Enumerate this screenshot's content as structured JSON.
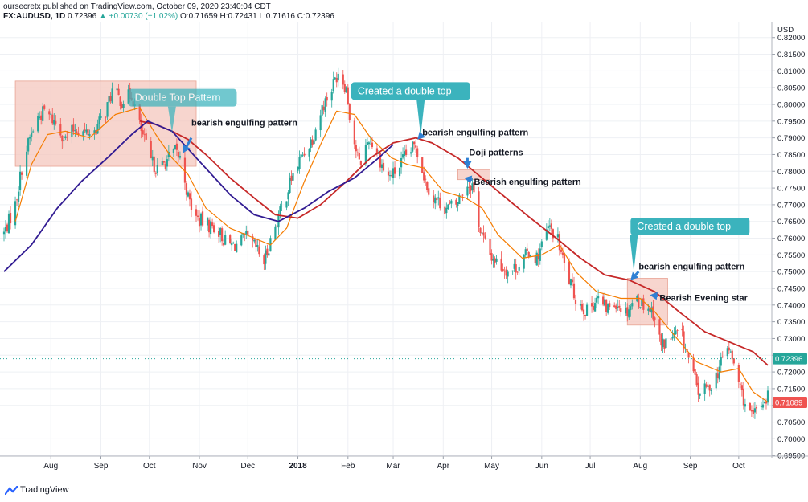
{
  "header": {
    "line1": "oursecretx published on TradingView.com, October 09, 2020 23:40:04 CDT",
    "symbol": "FX:AUDUSD, 1D",
    "last": "0.72396",
    "change": "▲ +0.00730 (+1.02%)",
    "ohlc": "O:0.71659 H:0.72431 L:0.71616 C:0.72396"
  },
  "footer": {
    "brand": "TradingView"
  },
  "colors": {
    "up": "#26a69a",
    "down": "#ef5350",
    "ma_fast": "#f57c00",
    "ma_mid": "#c62828",
    "ma_slow": "#311b92",
    "zone": "#f4c7bd",
    "callout": "#3bb3bd",
    "arrow": "#2f80d4",
    "last_label": "#26a69a",
    "ma_label": "#ef5350"
  },
  "chart_data": {
    "type": "candlestick",
    "price_unit": "USD",
    "ylim": [
      0.6948,
      0.8245
    ],
    "y_ticks": [
      "0.82000",
      "0.81500",
      "0.81000",
      "0.80500",
      "0.80000",
      "0.79500",
      "0.79000",
      "0.78500",
      "0.78000",
      "0.77500",
      "0.77000",
      "0.76500",
      "0.76000",
      "0.75500",
      "0.75000",
      "0.74500",
      "0.74000",
      "0.73500",
      "0.73000",
      "0.72500",
      "0.72000",
      "0.71500",
      "0.71000",
      "0.70500",
      "0.70000",
      "0.69500"
    ],
    "x_ticks": [
      {
        "label": "Aug",
        "date": "2017-08-01"
      },
      {
        "label": "Sep",
        "date": "2017-09-01"
      },
      {
        "label": "Oct",
        "date": "2017-10-01"
      },
      {
        "label": "Nov",
        "date": "2017-11-01"
      },
      {
        "label": "Dec",
        "date": "2017-12-01"
      },
      {
        "label": "2018",
        "date": "2018-01-01"
      },
      {
        "label": "Feb",
        "date": "2018-02-01"
      },
      {
        "label": "Mar",
        "date": "2018-03-01"
      },
      {
        "label": "Apr",
        "date": "2018-04-01"
      },
      {
        "label": "May",
        "date": "2018-05-01"
      },
      {
        "label": "Jun",
        "date": "2018-06-01"
      },
      {
        "label": "Jul",
        "date": "2018-07-01"
      },
      {
        "label": "Aug",
        "date": "2018-08-01"
      },
      {
        "label": "Sep",
        "date": "2018-09-01"
      },
      {
        "label": "Oct",
        "date": "2018-10-01"
      }
    ],
    "x_range": [
      "2017-07-03",
      "2018-10-19"
    ],
    "close_path": [
      [
        "2017-07-03",
        0.7615
      ],
      [
        "2017-07-10",
        0.77
      ],
      [
        "2017-07-14",
        0.781
      ],
      [
        "2017-07-19",
        0.79
      ],
      [
        "2017-07-24",
        0.796
      ],
      [
        "2017-07-28",
        0.798
      ],
      [
        "2017-08-04",
        0.7945
      ],
      [
        "2017-08-10",
        0.7895
      ],
      [
        "2017-08-16",
        0.793
      ],
      [
        "2017-08-22",
        0.7915
      ],
      [
        "2017-08-28",
        0.792
      ],
      [
        "2017-09-04",
        0.798
      ],
      [
        "2017-09-08",
        0.804
      ],
      [
        "2017-09-14",
        0.801
      ],
      [
        "2017-09-20",
        0.803
      ],
      [
        "2017-09-26",
        0.792
      ],
      [
        "2017-10-02",
        0.783
      ],
      [
        "2017-10-07",
        0.78
      ],
      [
        "2017-10-11",
        0.783
      ],
      [
        "2017-10-17",
        0.786
      ],
      [
        "2017-10-21",
        0.783
      ],
      [
        "2017-10-25",
        0.772
      ],
      [
        "2017-10-30",
        0.766
      ],
      [
        "2017-11-06",
        0.764
      ],
      [
        "2017-11-12",
        0.763
      ],
      [
        "2017-11-18",
        0.758
      ],
      [
        "2017-11-24",
        0.758
      ],
      [
        "2017-11-30",
        0.76
      ],
      [
        "2017-12-06",
        0.757
      ],
      [
        "2017-12-11",
        0.753
      ],
      [
        "2017-12-18",
        0.764
      ],
      [
        "2017-12-23",
        0.77
      ],
      [
        "2017-12-28",
        0.778
      ],
      [
        "2018-01-04",
        0.785
      ],
      [
        "2018-01-10",
        0.79
      ],
      [
        "2018-01-16",
        0.799
      ],
      [
        "2018-01-22",
        0.805
      ],
      [
        "2018-01-26",
        0.81
      ],
      [
        "2018-01-31",
        0.805
      ],
      [
        "2018-02-03",
        0.793
      ],
      [
        "2018-02-08",
        0.782
      ],
      [
        "2018-02-14",
        0.79
      ],
      [
        "2018-02-19",
        0.786
      ],
      [
        "2018-02-25",
        0.778
      ],
      [
        "2018-03-03",
        0.78
      ],
      [
        "2018-03-08",
        0.784
      ],
      [
        "2018-03-15",
        0.788
      ],
      [
        "2018-03-21",
        0.777
      ],
      [
        "2018-03-26",
        0.772
      ],
      [
        "2018-04-03",
        0.769
      ],
      [
        "2018-04-09",
        0.77
      ],
      [
        "2018-04-15",
        0.776
      ],
      [
        "2018-04-19",
        0.776
      ],
      [
        "2018-04-24",
        0.762
      ],
      [
        "2018-04-30",
        0.755
      ],
      [
        "2018-05-06",
        0.752
      ],
      [
        "2018-05-12",
        0.75
      ],
      [
        "2018-05-18",
        0.752
      ],
      [
        "2018-05-24",
        0.756
      ],
      [
        "2018-05-29",
        0.754
      ],
      [
        "2018-06-05",
        0.763
      ],
      [
        "2018-06-10",
        0.761
      ],
      [
        "2018-06-16",
        0.75
      ],
      [
        "2018-06-22",
        0.742
      ],
      [
        "2018-06-29",
        0.738
      ],
      [
        "2018-07-05",
        0.742
      ],
      [
        "2018-07-11",
        0.739
      ],
      [
        "2018-07-17",
        0.741
      ],
      [
        "2018-07-23",
        0.738
      ],
      [
        "2018-07-29",
        0.742
      ],
      [
        "2018-08-04",
        0.74
      ],
      [
        "2018-08-09",
        0.738
      ],
      [
        "2018-08-14",
        0.728
      ],
      [
        "2018-08-20",
        0.73
      ],
      [
        "2018-08-26",
        0.732
      ],
      [
        "2018-09-01",
        0.722
      ],
      [
        "2018-09-06",
        0.714
      ],
      [
        "2018-09-12",
        0.715
      ],
      [
        "2018-09-18",
        0.72
      ],
      [
        "2018-09-24",
        0.728
      ],
      [
        "2018-09-28",
        0.722
      ],
      [
        "2018-10-04",
        0.712
      ],
      [
        "2018-10-09",
        0.706
      ],
      [
        "2018-10-14",
        0.71
      ],
      [
        "2018-10-19",
        0.713
      ]
    ],
    "moving_averages": [
      {
        "color_key": "ma_fast",
        "points": [
          [
            "2017-07-10",
            0.765
          ],
          [
            "2017-07-20",
            0.782
          ],
          [
            "2017-07-30",
            0.791
          ],
          [
            "2017-08-10",
            0.792
          ],
          [
            "2017-08-25",
            0.79
          ],
          [
            "2017-09-10",
            0.797
          ],
          [
            "2017-09-25",
            0.799
          ],
          [
            "2017-10-05",
            0.791
          ],
          [
            "2017-10-15",
            0.784
          ],
          [
            "2017-10-25",
            0.779
          ],
          [
            "2017-11-05",
            0.769
          ],
          [
            "2017-11-20",
            0.763
          ],
          [
            "2017-12-05",
            0.76
          ],
          [
            "2017-12-15",
            0.758
          ],
          [
            "2017-12-25",
            0.763
          ],
          [
            "2018-01-05",
            0.777
          ],
          [
            "2018-01-15",
            0.788
          ],
          [
            "2018-01-25",
            0.798
          ],
          [
            "2018-02-05",
            0.797
          ],
          [
            "2018-02-15",
            0.79
          ],
          [
            "2018-02-28",
            0.784
          ],
          [
            "2018-03-10",
            0.782
          ],
          [
            "2018-03-20",
            0.781
          ],
          [
            "2018-04-01",
            0.774
          ],
          [
            "2018-04-15",
            0.772
          ],
          [
            "2018-04-25",
            0.769
          ],
          [
            "2018-05-05",
            0.761
          ],
          [
            "2018-05-20",
            0.754
          ],
          [
            "2018-06-01",
            0.755
          ],
          [
            "2018-06-12",
            0.758
          ],
          [
            "2018-06-22",
            0.75
          ],
          [
            "2018-07-05",
            0.744
          ],
          [
            "2018-07-20",
            0.742
          ],
          [
            "2018-08-01",
            0.742
          ],
          [
            "2018-08-10",
            0.738
          ],
          [
            "2018-08-22",
            0.731
          ],
          [
            "2018-09-05",
            0.723
          ],
          [
            "2018-09-20",
            0.72
          ],
          [
            "2018-10-01",
            0.721
          ],
          [
            "2018-10-10",
            0.714
          ],
          [
            "2018-10-19",
            0.711
          ]
        ]
      },
      {
        "color_key": "ma_mid",
        "points": [
          [
            "2017-09-25",
            0.795
          ],
          [
            "2017-10-05",
            0.794
          ],
          [
            "2017-10-15",
            0.792
          ],
          [
            "2017-10-25",
            0.7895
          ],
          [
            "2017-11-05",
            0.785
          ],
          [
            "2017-11-20",
            0.778
          ],
          [
            "2017-12-05",
            0.772
          ],
          [
            "2017-12-18",
            0.767
          ],
          [
            "2018-01-01",
            0.766
          ],
          [
            "2018-01-15",
            0.77
          ],
          [
            "2018-01-31",
            0.777
          ],
          [
            "2018-02-15",
            0.784
          ],
          [
            "2018-03-01",
            0.7885
          ],
          [
            "2018-03-15",
            0.79
          ],
          [
            "2018-03-25",
            0.7885
          ],
          [
            "2018-04-10",
            0.784
          ],
          [
            "2018-04-25",
            0.778
          ],
          [
            "2018-05-10",
            0.772
          ],
          [
            "2018-05-25",
            0.766
          ],
          [
            "2018-06-10",
            0.76
          ],
          [
            "2018-06-25",
            0.754
          ],
          [
            "2018-07-10",
            0.749
          ],
          [
            "2018-07-25",
            0.7475
          ],
          [
            "2018-08-10",
            0.744
          ],
          [
            "2018-08-25",
            0.738
          ],
          [
            "2018-09-10",
            0.732
          ],
          [
            "2018-09-25",
            0.729
          ],
          [
            "2018-10-10",
            0.726
          ],
          [
            "2018-10-19",
            0.722
          ]
        ]
      },
      {
        "color_key": "ma_slow",
        "points": [
          [
            "2017-07-03",
            0.75
          ],
          [
            "2017-07-20",
            0.758
          ],
          [
            "2017-08-05",
            0.769
          ],
          [
            "2017-08-20",
            0.777
          ],
          [
            "2017-09-05",
            0.784
          ],
          [
            "2017-09-20",
            0.791
          ],
          [
            "2017-09-30",
            0.795
          ],
          [
            "2017-10-15",
            0.792
          ],
          [
            "2017-11-01",
            0.783
          ],
          [
            "2017-11-20",
            0.773
          ],
          [
            "2017-12-05",
            0.767
          ],
          [
            "2017-12-20",
            0.765
          ],
          [
            "2018-01-05",
            0.769
          ],
          [
            "2018-01-20",
            0.774
          ],
          [
            "2018-02-05",
            0.778
          ],
          [
            "2018-02-20",
            0.784
          ],
          [
            "2018-03-01",
            0.788
          ]
        ]
      }
    ],
    "price_labels": [
      {
        "text": "0.72396",
        "value": 0.72396,
        "color_key": "last_label"
      },
      {
        "text": "0.71089",
        "value": 0.71089,
        "color_key": "ma_label"
      }
    ],
    "zones": [
      {
        "from": "2017-07-10",
        "to": "2017-10-30",
        "low": 0.7815,
        "high": 0.807
      },
      {
        "from": "2018-04-10",
        "to": "2018-04-30",
        "low": 0.7775,
        "high": 0.7805
      },
      {
        "from": "2018-07-24",
        "to": "2018-08-18",
        "low": 0.734,
        "high": 0.748
      }
    ],
    "callouts": [
      {
        "text": "Double Top Pattern",
        "date": "2017-09-20",
        "value": 0.802,
        "tip_date": "2017-10-15",
        "tip_value": 0.7915,
        "faded": true
      },
      {
        "text": "Created a double top",
        "date": "2018-02-05",
        "value": 0.804,
        "tip_date": "2018-03-18",
        "tip_value": 0.7905,
        "faded": false
      },
      {
        "text": "Created a double top",
        "date": "2018-07-28",
        "value": 0.7635,
        "tip_date": "2018-07-28",
        "tip_value": 0.75,
        "faded": false
      }
    ],
    "annotations": [
      {
        "text": "bearish engulfing pattern",
        "date": "2017-10-27",
        "value": 0.7946,
        "arrow_from": [
          "2017-10-27",
          0.79
        ],
        "arrow_to": [
          "2017-10-22",
          0.7855
        ]
      },
      {
        "text": "bearish engulfing pattern",
        "date": "2018-03-19",
        "value": 0.7917,
        "arrow_from": [
          "2018-03-19",
          0.791
        ],
        "arrow_to": [
          "2018-03-16",
          0.7895
        ]
      },
      {
        "text": "Doji patterns",
        "date": "2018-04-17",
        "value": 0.7857,
        "arrow_from": [
          "2018-04-16",
          0.784
        ],
        "arrow_to": [
          "2018-04-16",
          0.7808
        ]
      },
      {
        "text": "Bearish engulfing pattern",
        "date": "2018-04-20",
        "value": 0.777,
        "arrow_from": [
          "2018-04-19",
          0.7775
        ],
        "arrow_to": [
          "2018-04-14",
          0.778
        ]
      },
      {
        "text": "bearish engulfing pattern",
        "date": "2018-07-31",
        "value": 0.7516,
        "arrow_from": [
          "2018-07-31",
          0.75
        ],
        "arrow_to": [
          "2018-07-26",
          0.7475
        ]
      },
      {
        "text": "Bearish Evening star",
        "date": "2018-08-13",
        "value": 0.7422,
        "arrow_from": [
          "2018-08-12",
          0.7427
        ],
        "arrow_to": [
          "2018-08-07",
          0.743
        ]
      }
    ]
  }
}
